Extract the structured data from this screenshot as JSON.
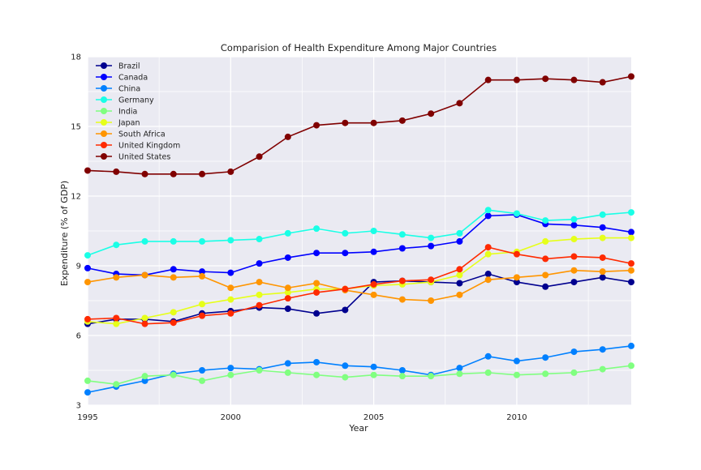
{
  "chart_data": {
    "type": "line",
    "title": "Comparision of Health Expenditure Among Major Countries",
    "xlabel": "Year",
    "ylabel": "Expenditure (% of GDP)",
    "xlim": [
      1995,
      2014
    ],
    "ylim": [
      3,
      18
    ],
    "x_ticks": [
      1995,
      2000,
      2005,
      2010
    ],
    "y_ticks": [
      3,
      6,
      9,
      12,
      15,
      18
    ],
    "grid": true,
    "legend_position": "top-left",
    "x": [
      1995,
      1996,
      1997,
      1998,
      1999,
      2000,
      2001,
      2002,
      2003,
      2004,
      2005,
      2006,
      2007,
      2008,
      2009,
      2010,
      2011,
      2012,
      2013,
      2014
    ],
    "series": [
      {
        "name": "Brazil",
        "color": "#00008f",
        "values": [
          6.5,
          6.7,
          6.7,
          6.6,
          6.95,
          7.05,
          7.2,
          7.15,
          6.95,
          7.1,
          8.3,
          8.35,
          8.3,
          8.25,
          8.65,
          8.3,
          8.1,
          8.3,
          8.5,
          8.3
        ]
      },
      {
        "name": "Canada",
        "color": "#0000ff",
        "values": [
          8.9,
          8.65,
          8.6,
          8.85,
          8.75,
          8.7,
          9.1,
          9.35,
          9.55,
          9.55,
          9.6,
          9.75,
          9.85,
          10.05,
          11.15,
          11.2,
          10.8,
          10.75,
          10.65,
          10.45
        ]
      },
      {
        "name": "China",
        "color": "#0080ff",
        "values": [
          3.55,
          3.8,
          4.05,
          4.35,
          4.5,
          4.6,
          4.55,
          4.8,
          4.85,
          4.7,
          4.65,
          4.5,
          4.3,
          4.6,
          5.1,
          4.9,
          5.05,
          5.3,
          5.4,
          5.55
        ]
      },
      {
        "name": "Germany",
        "color": "#1affe6",
        "values": [
          9.45,
          9.9,
          10.05,
          10.05,
          10.05,
          10.1,
          10.15,
          10.4,
          10.6,
          10.4,
          10.5,
          10.35,
          10.2,
          10.4,
          11.4,
          11.25,
          10.95,
          11.0,
          11.2,
          11.3
        ]
      },
      {
        "name": "India",
        "color": "#80ff80",
        "values": [
          4.05,
          3.9,
          4.25,
          4.3,
          4.05,
          4.3,
          4.5,
          4.4,
          4.3,
          4.2,
          4.3,
          4.25,
          4.25,
          4.35,
          4.4,
          4.3,
          4.35,
          4.4,
          4.55,
          4.7
        ]
      },
      {
        "name": "Japan",
        "color": "#e6ff1a",
        "values": [
          6.6,
          6.5,
          6.75,
          7.0,
          7.35,
          7.55,
          7.75,
          7.85,
          8.0,
          8.0,
          8.15,
          8.2,
          8.3,
          8.6,
          9.5,
          9.6,
          10.05,
          10.15,
          10.2,
          10.2
        ]
      },
      {
        "name": "South Africa",
        "color": "#ff9500",
        "values": [
          8.3,
          8.5,
          8.6,
          8.5,
          8.55,
          8.05,
          8.3,
          8.05,
          8.25,
          7.95,
          7.75,
          7.55,
          7.5,
          7.75,
          8.4,
          8.5,
          8.6,
          8.8,
          8.75,
          8.8
        ]
      },
      {
        "name": "United Kingdom",
        "color": "#ff2a00",
        "values": [
          6.7,
          6.75,
          6.5,
          6.55,
          6.85,
          6.95,
          7.3,
          7.6,
          7.85,
          8.0,
          8.2,
          8.35,
          8.4,
          8.85,
          9.8,
          9.5,
          9.3,
          9.4,
          9.35,
          9.1
        ]
      },
      {
        "name": "United States",
        "color": "#800000",
        "values": [
          13.1,
          13.05,
          12.95,
          12.95,
          12.95,
          13.05,
          13.7,
          14.55,
          15.05,
          15.15,
          15.15,
          15.25,
          15.55,
          16.0,
          17.0,
          17.0,
          17.05,
          17.0,
          16.9,
          17.15
        ]
      }
    ]
  }
}
